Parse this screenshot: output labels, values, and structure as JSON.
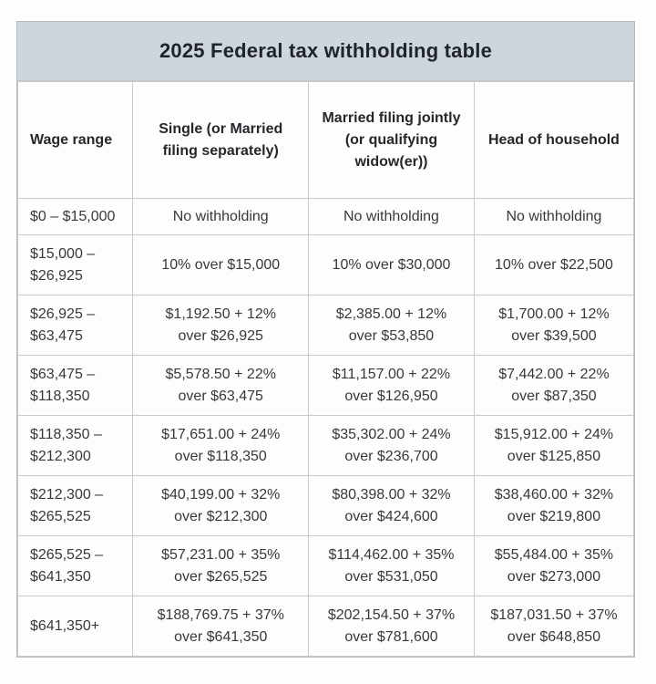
{
  "title": "2025 Federal tax withholding table",
  "table": {
    "columns": [
      "Wage range",
      "Single (or Married\nfiling separately)",
      "Married filing jointly\n(or qualifying\nwidow(er))",
      "Head of household"
    ],
    "rows": [
      [
        "$0 – $15,000",
        "No withholding",
        "No withholding",
        "No withholding"
      ],
      [
        "$15,000 –\n$26,925",
        "10% over $15,000",
        "10% over $30,000",
        "10% over $22,500"
      ],
      [
        "$26,925 –\n$63,475",
        "$1,192.50 + 12%\nover $26,925",
        "$2,385.00 + 12%\nover $53,850",
        "$1,700.00 + 12%\nover $39,500"
      ],
      [
        "$63,475 –\n$118,350",
        "$5,578.50 + 22%\nover $63,475",
        "$11,157.00 + 22%\nover $126,950",
        "$7,442.00 + 22%\nover $87,350"
      ],
      [
        "$118,350 –\n$212,300",
        "$17,651.00 + 24%\nover $118,350",
        "$35,302.00 + 24%\nover $236,700",
        "$15,912.00 + 24%\nover $125,850"
      ],
      [
        "$212,300 –\n$265,525",
        "$40,199.00 + 32%\nover $212,300",
        "$80,398.00 + 32%\nover $424,600",
        "$38,460.00 + 32%\nover $219,800"
      ],
      [
        "$265,525 –\n$641,350",
        "$57,231.00 + 35%\nover $265,525",
        "$114,462.00 + 35%\nover $531,050",
        "$55,484.00 + 35%\nover $273,000"
      ],
      [
        "$641,350+",
        "$188,769.75 + 37%\nover $641,350",
        "$202,154.50 + 37%\nover $781,600",
        "$187,031.50 + 37%\nover $648,850"
      ]
    ]
  },
  "colors": {
    "title_bar_bg": "#cdd6dd",
    "grid_border": "#c6cbcf",
    "outer_border": "#b3bac0",
    "title_text": "#212529",
    "body_text": "#36393c"
  }
}
